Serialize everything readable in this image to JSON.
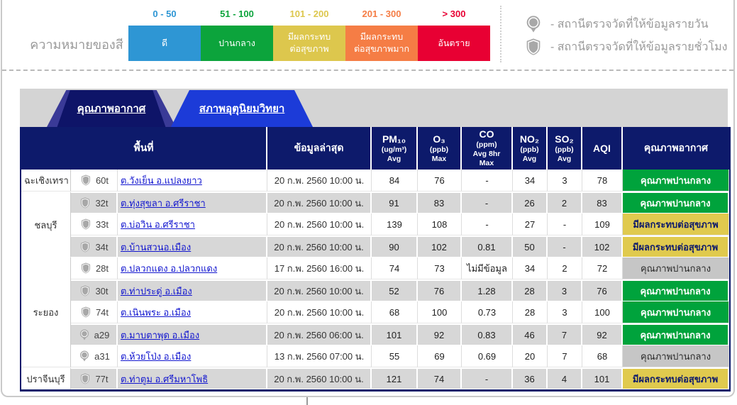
{
  "legend": {
    "title": "ความหมายของสี",
    "ranges": [
      {
        "range": "0 - 50",
        "label": "ดี",
        "color": "#2e96d4"
      },
      {
        "range": "51 - 100",
        "label": "ปานกลาง",
        "color": "#0ca43c"
      },
      {
        "range": "101 - 200",
        "label": "มีผลกระทบ\nต่อสุขภาพ",
        "color": "#ddc74d"
      },
      {
        "range": "201 - 300",
        "label": "มีผลกระทบ\nต่อสุขภาพมาก",
        "color": "#f57d45"
      },
      {
        "range": "> 300",
        "label": "อันตราย",
        "color": "#e80033"
      }
    ],
    "station_types": [
      {
        "icon": "pin",
        "label": "- สถานีตรวจวัดที่ให้ข้อมูลรายวัน"
      },
      {
        "icon": "shield",
        "label": "- สถานีตรวจวัดที่ให้ข้อมูลรายชั่วโมง"
      }
    ]
  },
  "tabs": [
    {
      "label": "คุณภาพอากาศ",
      "active": true
    },
    {
      "label": "สภาพอุตุนิยมวิทยา",
      "active": false
    }
  ],
  "table": {
    "headers": {
      "area": "พื้นที่",
      "latest": "ข้อมูลล่าสุด",
      "pm10_name": "PM₁₀",
      "pm10_sub": "(ug/m³)\nAvg",
      "o3_name": "O₃",
      "o3_sub": "(ppb)\nMax",
      "co_name": "CO",
      "co_sub": "(ppm)\nAvg 8hr\nMax",
      "no2_name": "NO₂",
      "no2_sub": "(ppb)\nAvg",
      "so2_name": "SO₂",
      "so2_sub": "(ppb)\nAvg",
      "aqi": "AQI",
      "quality": "คุณภาพอากาศ"
    },
    "rows": [
      {
        "province": "ฉะเชิงเทรา",
        "province_rowspan": 1,
        "station_icon": "shield",
        "station_code": "60t",
        "station_name": "ต.วังเย็น อ.แปลงยาว",
        "updated": "20 ก.พ. 2560 10:00 น.",
        "pm10": "84",
        "o3": "76",
        "co": "-",
        "no2": "34",
        "so2": "3",
        "aqi": "78",
        "quality_label": "คุณภาพปานกลาง",
        "quality_color": "green"
      },
      {
        "province": "ชลบุรี",
        "province_rowspan": 3,
        "station_icon": "shield",
        "station_code": "32t",
        "station_name": "ต.ทุ่งสุขลา อ.ศรีราชา",
        "updated": "20 ก.พ. 2560 10:00 น.",
        "pm10": "91",
        "o3": "83",
        "co": "-",
        "no2": "26",
        "so2": "2",
        "aqi": "83",
        "quality_label": "คุณภาพปานกลาง",
        "quality_color": "green"
      },
      {
        "province": null,
        "station_icon": "shield",
        "station_code": "33t",
        "station_name": "ต.บ่อวิน อ.ศรีราชา",
        "updated": "20 ก.พ. 2560 10:00 น.",
        "pm10": "139",
        "o3": "108",
        "co": "-",
        "no2": "27",
        "so2": "-",
        "aqi": "109",
        "quality_label": "มีผลกระทบต่อสุขภาพ",
        "quality_color": "yellow"
      },
      {
        "province": null,
        "station_icon": "shield",
        "station_code": "34t",
        "station_name": "ต.บ้านสวนอ.เมือง",
        "updated": "20 ก.พ. 2560 10:00 น.",
        "pm10": "90",
        "o3": "102",
        "co": "0.81",
        "no2": "50",
        "so2": "-",
        "aqi": "102",
        "quality_label": "มีผลกระทบต่อสุขภาพ",
        "quality_color": "yellow"
      },
      {
        "province": "ระยอง",
        "province_rowspan": 5,
        "station_icon": "shield",
        "station_code": "28t",
        "station_name": "ต.ปลวกแดง อ.ปลวกแดง",
        "updated": "17 ก.พ. 2560 16:00 น.",
        "pm10": "74",
        "o3": "73",
        "co": "ไม่มีข้อมูล",
        "no2": "34",
        "so2": "2",
        "aqi": "72",
        "quality_label": "คุณภาพปานกลาง",
        "quality_color": "gray"
      },
      {
        "province": null,
        "station_icon": "shield",
        "station_code": "30t",
        "station_name": "ต.ท่าประดู่ อ.เมือง",
        "updated": "20 ก.พ. 2560 10:00 น.",
        "pm10": "52",
        "o3": "76",
        "co": "1.28",
        "no2": "28",
        "so2": "3",
        "aqi": "76",
        "quality_label": "คุณภาพปานกลาง",
        "quality_color": "green"
      },
      {
        "province": null,
        "station_icon": "shield",
        "station_code": "74t",
        "station_name": "ต.เนินพระ อ.เมือง",
        "updated": "20 ก.พ. 2560 10:00 น.",
        "pm10": "68",
        "o3": "100",
        "co": "0.73",
        "no2": "28",
        "so2": "3",
        "aqi": "100",
        "quality_label": "คุณภาพปานกลาง",
        "quality_color": "green"
      },
      {
        "province": null,
        "station_icon": "pin",
        "station_code": "a29",
        "station_name": "ต.มาบตาพุด อ.เมือง",
        "updated": "20 ก.พ. 2560 06:00 น.",
        "pm10": "101",
        "o3": "92",
        "co": "0.83",
        "no2": "46",
        "so2": "7",
        "aqi": "92",
        "quality_label": "คุณภาพปานกลาง",
        "quality_color": "green"
      },
      {
        "province": null,
        "station_icon": "pin",
        "station_code": "a31",
        "station_name": "ต.ห้วยโป่ง อ.เมือง",
        "updated": "13 ก.พ. 2560 07:00 น.",
        "pm10": "55",
        "o3": "69",
        "co": "0.69",
        "no2": "20",
        "so2": "7",
        "aqi": "68",
        "quality_label": "คุณภาพปานกลาง",
        "quality_color": "gray"
      },
      {
        "province": "ปราจีนบุรี",
        "province_rowspan": 1,
        "station_icon": "shield",
        "station_code": "77t",
        "station_name": "ต.ท่าตูม อ.ศรีมหาโพธิ",
        "updated": "20 ก.พ. 2560 10:00 น.",
        "pm10": "121",
        "o3": "74",
        "co": "-",
        "no2": "36",
        "so2": "4",
        "aqi": "101",
        "quality_label": "มีผลกระทบต่อสุขภาพ",
        "quality_color": "yellow"
      }
    ]
  }
}
